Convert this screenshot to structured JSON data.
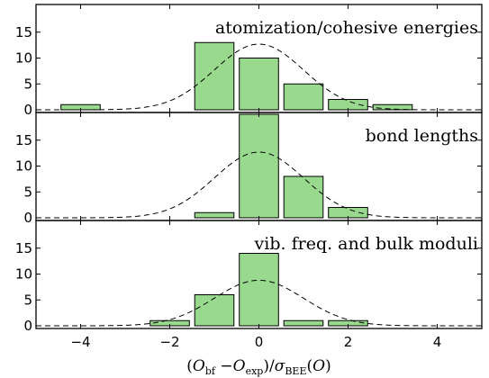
{
  "chart_data": {
    "type": "bar",
    "xlabel": {
      "parts": [
        {
          "t": "(",
          "style": "normal"
        },
        {
          "t": "O",
          "style": "italic"
        },
        {
          "t": "bf",
          "style": "sub"
        },
        {
          "t": " −",
          "style": "normal"
        },
        {
          "t": "O",
          "style": "italic"
        },
        {
          "t": "exp",
          "style": "sub"
        },
        {
          "t": ")/",
          "style": "normal"
        },
        {
          "t": "σ",
          "style": "italic"
        },
        {
          "t": "BEE",
          "style": "sub"
        },
        {
          "t": "(",
          "style": "normal"
        },
        {
          "t": "O",
          "style": "italic"
        },
        {
          "t": ")",
          "style": "normal"
        }
      ]
    },
    "xlim": [
      -5,
      5
    ],
    "xticks": [
      -4,
      -2,
      0,
      2,
      4
    ],
    "bar_color": "#98d98e",
    "bin_width": 1,
    "panels": [
      {
        "title": "atomization/cohesive energies",
        "ylim": [
          0,
          20
        ],
        "yticks": [
          0,
          5,
          10,
          15
        ],
        "bins": [
          {
            "x": -4,
            "value": 1
          },
          {
            "x": -1,
            "value": 13
          },
          {
            "x": 0,
            "value": 10
          },
          {
            "x": 1,
            "value": 5
          },
          {
            "x": 2,
            "value": 2
          },
          {
            "x": 3,
            "value": 1
          }
        ],
        "gaussian_peak": 12.7
      },
      {
        "title": "bond lengths",
        "ylim": [
          0,
          20
        ],
        "yticks": [
          0,
          5,
          10,
          15
        ],
        "bins": [
          {
            "x": -1,
            "value": 1
          },
          {
            "x": 0,
            "value": 20
          },
          {
            "x": 1,
            "value": 8
          },
          {
            "x": 2,
            "value": 2
          }
        ],
        "gaussian_peak": 12.7
      },
      {
        "title": "vib. freq. and bulk moduli",
        "ylim": [
          0,
          20
        ],
        "yticks": [
          0,
          5,
          10,
          15
        ],
        "bins": [
          {
            "x": -2,
            "value": 1
          },
          {
            "x": -1,
            "value": 6
          },
          {
            "x": 0,
            "value": 14
          },
          {
            "x": 1,
            "value": 1
          },
          {
            "x": 2,
            "value": 1
          }
        ],
        "gaussian_peak": 8.8
      }
    ]
  }
}
